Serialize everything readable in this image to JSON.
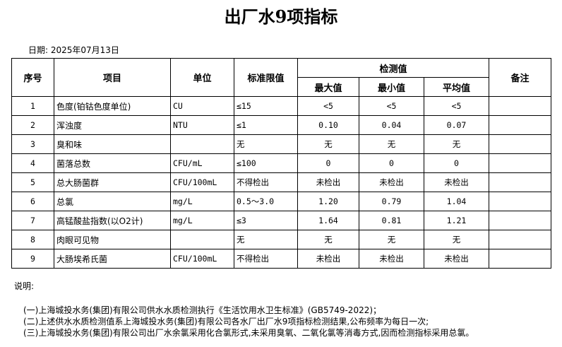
{
  "title": "出厂水9项指标",
  "date": "日期: 2025年07月13日",
  "headers": {
    "no": "序号",
    "item": "项目",
    "unit": "单位",
    "limit": "标准限值",
    "measured": "检测值",
    "max": "最大值",
    "min": "最小值",
    "avg": "平均值",
    "remark": "备注"
  },
  "rows": [
    {
      "no": "1",
      "item": "色度(铂钴色度单位)",
      "unit": "CU",
      "limit": "≤15",
      "max": "<5",
      "min": "<5",
      "avg": "<5"
    },
    {
      "no": "2",
      "item": "浑浊度",
      "unit": "NTU",
      "limit": "≤1",
      "max": "0.10",
      "min": "0.04",
      "avg": "0.07"
    },
    {
      "no": "3",
      "item": "臭和味",
      "unit": "",
      "limit": "无",
      "max": "无",
      "min": "无",
      "avg": "无"
    },
    {
      "no": "4",
      "item": "菌落总数",
      "unit": "CFU/mL",
      "limit": "≤100",
      "max": "0",
      "min": "0",
      "avg": "0"
    },
    {
      "no": "5",
      "item": "总大肠菌群",
      "unit": "CFU/100mL",
      "limit": "不得检出",
      "max": "未检出",
      "min": "未检出",
      "avg": "未检出"
    },
    {
      "no": "6",
      "item": "总氯",
      "unit": "mg/L",
      "limit": "0.5～3.0",
      "max": "1.20",
      "min": "0.79",
      "avg": "1.04"
    },
    {
      "no": "7",
      "item": "高锰酸盐指数(以O2计)",
      "unit": "mg/L",
      "limit": "≤3",
      "max": "1.64",
      "min": "0.81",
      "avg": "1.21"
    },
    {
      "no": "8",
      "item": "肉眼可见物",
      "unit": "",
      "limit": "无",
      "max": "无",
      "min": "无",
      "avg": "无"
    },
    {
      "no": "9",
      "item": "大肠埃希氏菌",
      "unit": "CFU/100mL",
      "limit": "不得检出",
      "max": "未检出",
      "min": "未检出",
      "avg": "未检出"
    }
  ],
  "notes": {
    "label": "说明:",
    "items": [
      "(一)上海城投水务(集团)有限公司供水水质检测执行《生活饮用水卫生标准》(GB5749-2022)；",
      "(二)上述供水水质检测值系上海城投水务(集团)有限公司各水厂出厂水9项指标检测结果,公布频率为每日一次;",
      "(三)上海城投水务(集团)有限公司出厂水余氯采用化合氯形式,未采用臭氧、二氧化氯等消毒方式,因而检测指标采用总氯。"
    ]
  }
}
